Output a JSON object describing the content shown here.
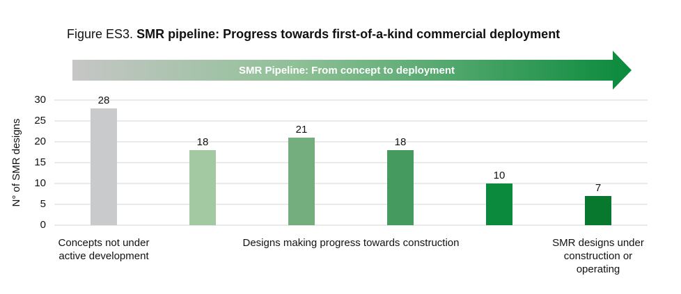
{
  "chart_data": {
    "type": "bar",
    "figure_label": "Figure ES3.",
    "title": "SMR pipeline: Progress towards first-of-a-kind commercial deployment",
    "banner": "SMR Pipeline: From concept to deployment",
    "y_label": "N° of SMR designs",
    "ylim": [
      0,
      30
    ],
    "yticks": [
      0,
      5,
      10,
      15,
      20,
      25,
      30
    ],
    "grid": true,
    "groups": [
      {
        "label": "Concepts not under active development",
        "values": [
          28
        ],
        "colors": [
          "#c9cacc"
        ]
      },
      {
        "label": "Designs making progress towards construction",
        "values": [
          18,
          21,
          18,
          10
        ],
        "colors": [
          "#a2c9a1",
          "#74ae7e",
          "#459a5f",
          "#0b8a3d"
        ]
      },
      {
        "label": "SMR designs under construction or operating",
        "values": [
          7
        ],
        "colors": [
          "#08782f"
        ]
      }
    ]
  }
}
